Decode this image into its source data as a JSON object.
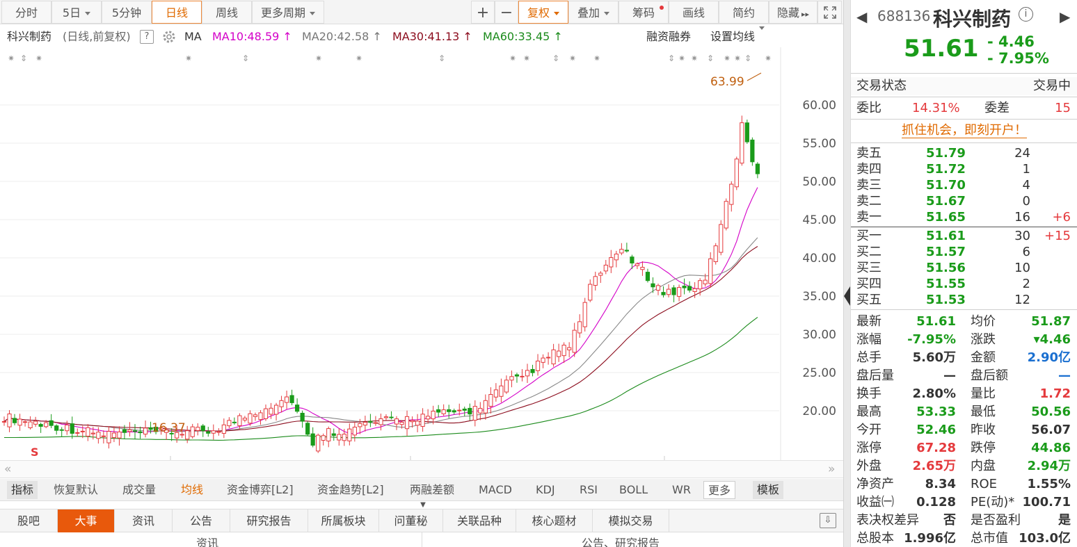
{
  "toolbar": {
    "tabs": [
      "分时",
      "5日",
      "5分钟",
      "日线",
      "周线",
      "更多周期"
    ],
    "icons": [
      "plus-icon",
      "minus-icon"
    ],
    "fuquan": "复权",
    "diejia": "叠加",
    "chouma": "筹码",
    "huaxian": "画线",
    "jianyue": "简约",
    "yincang": "隐藏"
  },
  "ma_row": {
    "name": "科兴制药",
    "period": "(日线,前复权)",
    "help": "?",
    "ma": "MA",
    "ma10": "MA10:48.59",
    "ma20": "MA20:42.58",
    "ma30": "MA30:41.13",
    "ma60": "MA60:33.45",
    "rzrq": "融资融券",
    "setma": "设置均线"
  },
  "chart_data": {
    "type": "candlestick",
    "yaxis": [
      "60.00",
      "55.00",
      "50.00",
      "45.00",
      "40.00",
      "35.00",
      "30.00",
      "25.00",
      "20.00"
    ],
    "ymin": 14,
    "ymax": 66,
    "high_label": "63.99",
    "low_label": "16.37",
    "marker": "S"
  },
  "indicator_tabs": [
    "指标",
    "恢复默认",
    "成交量",
    "均线",
    "资金博弈[L2]",
    "资金趋势[L2]",
    "两融差额",
    "MACD",
    "KDJ",
    "RSI",
    "BOLL",
    "WR",
    "更多",
    "模板"
  ],
  "bottom_tabs": [
    "股吧",
    "大事",
    "资讯",
    "公告",
    "研究报告",
    "所属板块",
    "问董秘",
    "关联品种",
    "核心题材",
    "模拟交易"
  ],
  "bottom_content": {
    "left": "资讯",
    "right": "公告、研究报告"
  },
  "stock": {
    "code": "688136",
    "name": "科兴制药",
    "price": "51.61",
    "change": "- 4.46",
    "pct": "- 7.95%"
  },
  "status": {
    "label": "交易状态",
    "value": "交易中"
  },
  "weibi": {
    "label": "委比",
    "value": "14.31%",
    "diff_label": "委差",
    "diff": "15"
  },
  "promo": "抓住机会，即刻开户！",
  "asks": [
    {
      "l": "卖五",
      "p": "51.79",
      "v": "24",
      "d": ""
    },
    {
      "l": "卖四",
      "p": "51.72",
      "v": "1",
      "d": ""
    },
    {
      "l": "卖三",
      "p": "51.70",
      "v": "4",
      "d": ""
    },
    {
      "l": "卖二",
      "p": "51.67",
      "v": "0",
      "d": ""
    },
    {
      "l": "卖一",
      "p": "51.65",
      "v": "16",
      "d": "+6"
    }
  ],
  "bids": [
    {
      "l": "买一",
      "p": "51.61",
      "v": "30",
      "d": "+15"
    },
    {
      "l": "买二",
      "p": "51.57",
      "v": "6",
      "d": ""
    },
    {
      "l": "买三",
      "p": "51.56",
      "v": "10",
      "d": ""
    },
    {
      "l": "买四",
      "p": "51.55",
      "v": "2",
      "d": ""
    },
    {
      "l": "买五",
      "p": "51.53",
      "v": "12",
      "d": ""
    }
  ],
  "stats": [
    {
      "l1": "最新",
      "v1": "51.61",
      "c1": "green",
      "l2": "均价",
      "v2": "51.87",
      "c2": "green"
    },
    {
      "l1": "涨幅",
      "v1": "-7.95%",
      "c1": "green",
      "l2": "涨跌",
      "v2": "▾4.46",
      "c2": "green"
    },
    {
      "l1": "总手",
      "v1": "5.60万",
      "c1": "",
      "l2": "金额",
      "v2": "2.90亿",
      "c2": "blue"
    },
    {
      "l1": "盘后量",
      "v1": "—",
      "c1": "",
      "l2": "盘后额",
      "v2": "—",
      "c2": "blue"
    },
    {
      "l1": "换手",
      "v1": "2.80%",
      "c1": "",
      "l2": "量比",
      "v2": "1.72",
      "c2": "red"
    },
    {
      "l1": "最高",
      "v1": "53.33",
      "c1": "green",
      "l2": "最低",
      "v2": "50.56",
      "c2": "green"
    },
    {
      "l1": "今开",
      "v1": "52.46",
      "c1": "green",
      "l2": "昨收",
      "v2": "56.07",
      "c2": ""
    },
    {
      "l1": "涨停",
      "v1": "67.28",
      "c1": "red",
      "l2": "跌停",
      "v2": "44.86",
      "c2": "green"
    },
    {
      "l1": "外盘",
      "v1": "2.65万",
      "c1": "red",
      "l2": "内盘",
      "v2": "2.94万",
      "c2": "green"
    },
    {
      "l1": "净资产",
      "v1": "8.34",
      "c1": "",
      "l2": "ROE",
      "v2": "1.55%",
      "c2": ""
    },
    {
      "l1": "收益㈠",
      "v1": "0.128",
      "c1": "",
      "l2": "PE(动)*",
      "v2": "100.71",
      "c2": ""
    },
    {
      "l1": "表决权差异",
      "v1": "否",
      "c1": "",
      "l2": "是否盈利",
      "v2": "是",
      "c2": ""
    },
    {
      "l1": "总股本",
      "v1": "1.996亿",
      "c1": "",
      "l2": "总市值",
      "v2": "103.0亿",
      "c2": ""
    }
  ]
}
